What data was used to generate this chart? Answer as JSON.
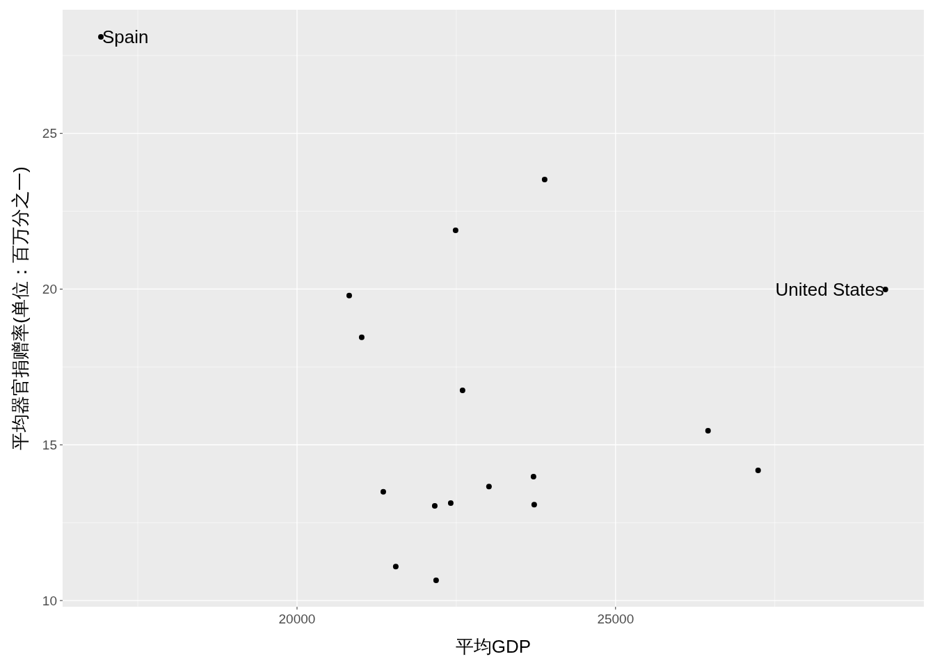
{
  "chart_data": {
    "type": "scatter",
    "xlabel": "平均GDP",
    "ylabel": "平均器官捐赠率(单位：百万分之一)",
    "x": [
      16921,
      23887,
      22489,
      20819,
      21015,
      22598,
      26452,
      27238,
      23712,
      23013,
      21354,
      22413,
      22162,
      23723,
      21550,
      22183,
      29236
    ],
    "values": [
      28.1,
      23.52,
      21.89,
      19.79,
      18.45,
      16.75,
      15.45,
      14.18,
      13.98,
      13.66,
      13.49,
      13.13,
      13.04,
      13.08,
      11.09,
      10.65,
      19.99
    ],
    "color": "#000000",
    "marker": "circle",
    "xlim": [
      16320,
      29840
    ],
    "ylim": [
      9.8,
      28.97
    ],
    "xticks": [
      20000,
      25000
    ],
    "yticks": [
      10,
      15,
      20,
      25
    ],
    "grid": true,
    "annotations": [
      {
        "text": "Spain",
        "x": 16921,
        "y": 28.1
      },
      {
        "text": "United States",
        "x": 29236,
        "y": 19.99
      }
    ]
  }
}
